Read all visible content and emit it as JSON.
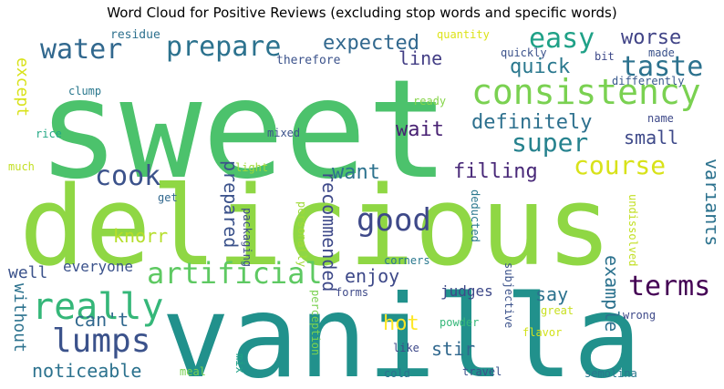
{
  "chart_data": {
    "type": "wordcloud",
    "title": "Word Cloud for Positive Reviews (excluding stop words and specific words)",
    "colormap": "viridis",
    "background": "#ffffff",
    "words": [
      {
        "text": "sweet",
        "color": "#4cc26c",
        "rotate": false
      },
      {
        "text": "delicious",
        "color": "#8fd744",
        "rotate": false
      },
      {
        "text": "vanilla",
        "color": "#21918c",
        "rotate": false
      },
      {
        "text": "consistency",
        "color": "#7ad151",
        "rotate": false
      },
      {
        "text": "artificial",
        "color": "#5ec962",
        "rotate": false
      },
      {
        "text": "really",
        "color": "#35b779",
        "rotate": false
      },
      {
        "text": "lumps",
        "color": "#3b528b",
        "rotate": false
      },
      {
        "text": "water",
        "color": "#31688e",
        "rotate": false
      },
      {
        "text": "prepare",
        "color": "#2c728e",
        "rotate": false
      },
      {
        "text": "good",
        "color": "#3e4989",
        "rotate": false
      },
      {
        "text": "easy",
        "color": "#1fa187",
        "rotate": false
      },
      {
        "text": "taste",
        "color": "#2c728e",
        "rotate": false
      },
      {
        "text": "course",
        "color": "#d8e219",
        "rotate": false
      },
      {
        "text": "super",
        "color": "#26828e",
        "rotate": false
      },
      {
        "text": "cook",
        "color": "#3b528b",
        "rotate": false
      },
      {
        "text": "terms",
        "color": "#440154",
        "rotate": false
      },
      {
        "text": "expected",
        "color": "#31688e",
        "rotate": false
      },
      {
        "text": "definitely",
        "color": "#2d708e",
        "rotate": false
      },
      {
        "text": "quick",
        "color": "#2a788e",
        "rotate": false
      },
      {
        "text": "worse",
        "color": "#414487",
        "rotate": false
      },
      {
        "text": "filling",
        "color": "#482878",
        "rotate": false
      },
      {
        "text": "want",
        "color": "#2c728e",
        "rotate": false
      },
      {
        "text": "wait",
        "color": "#482173",
        "rotate": false
      },
      {
        "text": "small",
        "color": "#3e4989",
        "rotate": false
      },
      {
        "text": "line",
        "color": "#433e85",
        "rotate": false
      },
      {
        "text": "knorr",
        "color": "#b5de2b",
        "rotate": false
      },
      {
        "text": "enjoy",
        "color": "#3e4989",
        "rotate": false
      },
      {
        "text": "say",
        "color": "#2c728e",
        "rotate": false
      },
      {
        "text": "noticeable",
        "color": "#2c728e",
        "rotate": false
      },
      {
        "text": "can't",
        "color": "#31688e",
        "rotate": false
      },
      {
        "text": "well",
        "color": "#3b528b",
        "rotate": false
      },
      {
        "text": "hot",
        "color": "#fde725",
        "rotate": false
      },
      {
        "text": "stir",
        "color": "#31688e",
        "rotate": false
      },
      {
        "text": "judges",
        "color": "#3e4989",
        "rotate": false
      },
      {
        "text": "everyone",
        "color": "#3b528b",
        "rotate": false
      },
      {
        "text": "residue",
        "color": "#2d708e",
        "rotate": false
      },
      {
        "text": "quantity",
        "color": "#dde318",
        "rotate": false
      },
      {
        "text": "therefore",
        "color": "#3b528b",
        "rotate": false
      },
      {
        "text": "quickly",
        "color": "#3b528b",
        "rotate": false
      },
      {
        "text": "bit",
        "color": "#3e4989",
        "rotate": false
      },
      {
        "text": "made",
        "color": "#3b528b",
        "rotate": false
      },
      {
        "text": "clump",
        "color": "#2a788e",
        "rotate": false
      },
      {
        "text": "differently",
        "color": "#38598c",
        "rotate": false
      },
      {
        "text": "ready",
        "color": "#86d549",
        "rotate": false
      },
      {
        "text": "name",
        "color": "#3e4989",
        "rotate": false
      },
      {
        "text": "rice",
        "color": "#22a884",
        "rotate": false
      },
      {
        "text": "mixed",
        "color": "#3b528b",
        "rotate": false
      },
      {
        "text": "much",
        "color": "#c2df23",
        "rotate": false
      },
      {
        "text": "light",
        "color": "#a0da39",
        "rotate": false
      },
      {
        "text": "get",
        "color": "#31688e",
        "rotate": false
      },
      {
        "text": "forms",
        "color": "#3e4989",
        "rotate": false
      },
      {
        "text": "corners",
        "color": "#2a788e",
        "rotate": false
      },
      {
        "text": "powder",
        "color": "#35b779",
        "rotate": false
      },
      {
        "text": "great",
        "color": "#c8e020",
        "rotate": false
      },
      {
        "text": "wrong",
        "color": "#3e4989",
        "rotate": false
      },
      {
        "text": "flavor",
        "color": "#d2e21b",
        "rotate": false
      },
      {
        "text": "like",
        "color": "#3e4989",
        "rotate": false
      },
      {
        "text": "meal",
        "color": "#7ad151",
        "rotate": false
      },
      {
        "text": "cold",
        "color": "#2c728e",
        "rotate": false
      },
      {
        "text": "travel",
        "color": "#3b528b",
        "rotate": false
      },
      {
        "text": "semolina",
        "color": "#2a788e",
        "rotate": false
      },
      {
        "text": "except",
        "color": "#d8e219",
        "rotate": true
      },
      {
        "text": "prepared",
        "color": "#3b528b",
        "rotate": true
      },
      {
        "text": "recommended",
        "color": "#3e4989",
        "rotate": true
      },
      {
        "text": "variants",
        "color": "#2c728e",
        "rotate": true
      },
      {
        "text": "example",
        "color": "#2c728e",
        "rotate": true
      },
      {
        "text": "without",
        "color": "#2c728e",
        "rotate": true
      },
      {
        "text": "packaging",
        "color": "#3e4989",
        "rotate": true
      },
      {
        "text": "personally",
        "color": "#a0da39",
        "rotate": true
      },
      {
        "text": "deducted",
        "color": "#2a788e",
        "rotate": true
      },
      {
        "text": "subjective",
        "color": "#3b528b",
        "rotate": true
      },
      {
        "text": "undissolved",
        "color": "#c2df23",
        "rotate": true
      },
      {
        "text": "perception",
        "color": "#7ad151",
        "rotate": true
      },
      {
        "text": "mix",
        "color": "#1fa187",
        "rotate": true
      }
    ]
  }
}
